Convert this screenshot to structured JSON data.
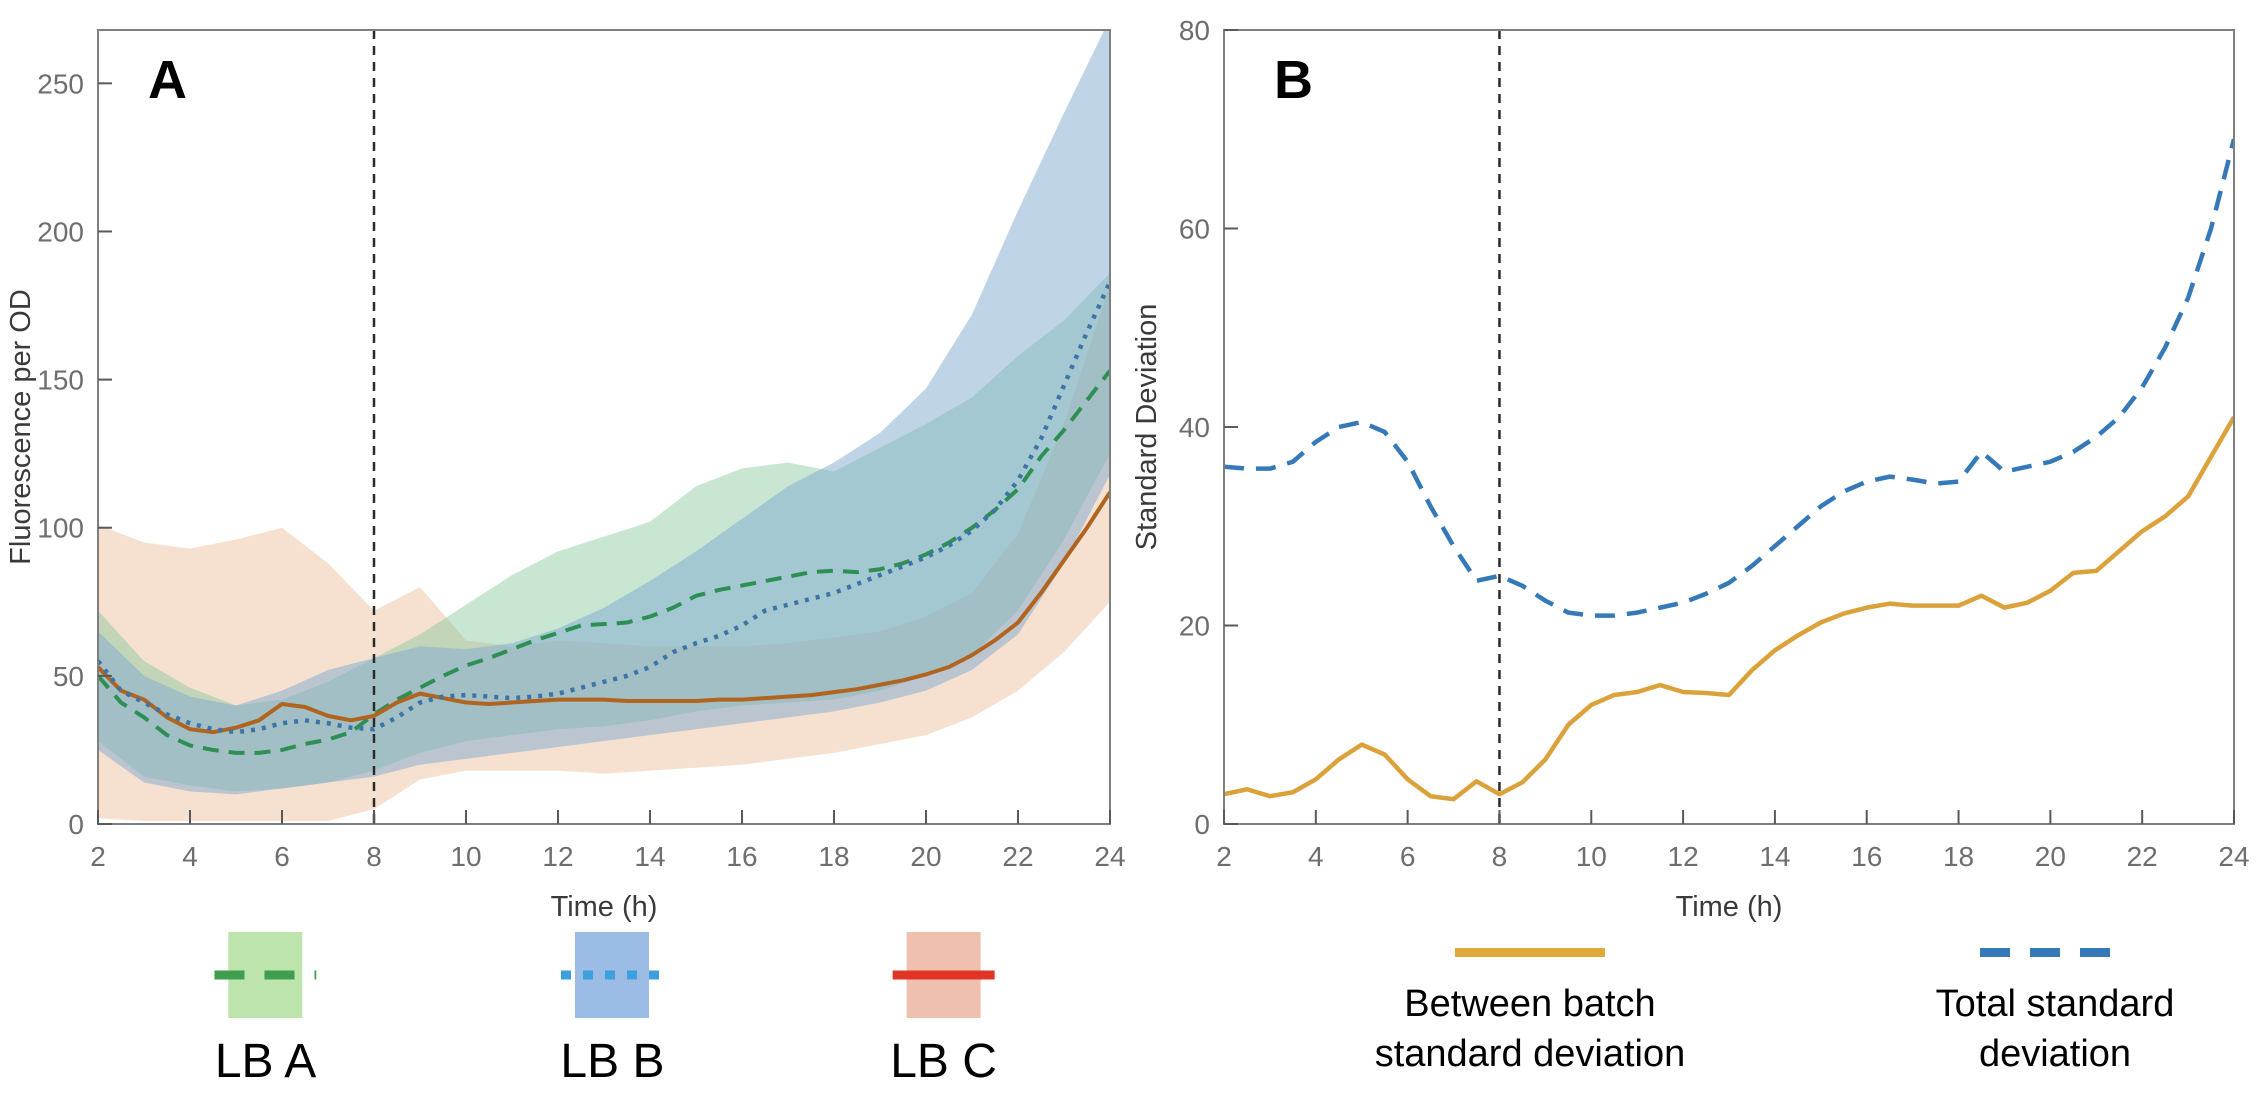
{
  "chart_data": [
    {
      "id": "A",
      "type": "line",
      "panel_label": "A",
      "xlabel": "Time (h)",
      "ylabel": "Fluorescence per OD",
      "xlim": [
        2,
        24
      ],
      "ylim": [
        0,
        268
      ],
      "x_ticks": [
        2,
        4,
        6,
        8,
        10,
        12,
        14,
        16,
        18,
        20,
        22,
        24
      ],
      "y_ticks": [
        0,
        50,
        100,
        150,
        200,
        250
      ],
      "grid": false,
      "vline": {
        "x": 8,
        "color": "#2b2b2b",
        "dash": "9 7",
        "width": 2.5
      },
      "x_start": 2,
      "x_step": 0.5,
      "series": [
        {
          "name": "LB A",
          "color": "#2e8f55",
          "dash": "16 10",
          "width": 4,
          "values": [
            50,
            41,
            36,
            30,
            26.5,
            25,
            24,
            24,
            25,
            27,
            28.5,
            31,
            37,
            42,
            46,
            50,
            53.5,
            56,
            59,
            62,
            64.5,
            67,
            67.5,
            68,
            70,
            73,
            77,
            79,
            80.5,
            82,
            83.5,
            85,
            85.5,
            85,
            86,
            88,
            91,
            95,
            100,
            106,
            113,
            124,
            133,
            143,
            153
          ]
        },
        {
          "name": "LB C",
          "color": "#b0641f",
          "dash": "",
          "width": 4,
          "values": [
            53,
            45,
            42,
            36,
            32,
            31,
            32.5,
            35,
            40.5,
            39.5,
            36.5,
            35,
            36.5,
            41,
            44,
            42.5,
            41,
            40.5,
            41,
            41.5,
            42,
            42,
            42,
            41.5,
            41.5,
            41.5,
            41.5,
            42,
            42,
            42.5,
            43,
            43.5,
            44.5,
            45.5,
            47,
            48.5,
            50.5,
            53,
            57,
            62,
            68,
            78,
            89,
            100,
            112
          ]
        },
        {
          "name": "LB B",
          "color": "#3d74a6",
          "dash": "4 7",
          "width": 4.5,
          "values": [
            55,
            45,
            41,
            37,
            34,
            32,
            31,
            32,
            34,
            35,
            34,
            32.5,
            32,
            36,
            41,
            43,
            43.5,
            43,
            42.5,
            43,
            44,
            46,
            48,
            50,
            53,
            58,
            61,
            63.5,
            67,
            72,
            74,
            76,
            78,
            81,
            84,
            87,
            90,
            94,
            99,
            106,
            116,
            130,
            148,
            166,
            183
          ]
        }
      ],
      "bands": [
        {
          "name": "LB C band",
          "color": "#e9b88e",
          "opacity": 0.42,
          "x": [
            2,
            3,
            4,
            5,
            6,
            7,
            8,
            9,
            10,
            11,
            12,
            13,
            14,
            15,
            16,
            17,
            18,
            19,
            20,
            21,
            22,
            23,
            24
          ],
          "upper": [
            101,
            95,
            93,
            96,
            100,
            88,
            72,
            80,
            62,
            60,
            62,
            61,
            60,
            60,
            60,
            61,
            63,
            65,
            70,
            78,
            98,
            135,
            182
          ],
          "lower": [
            2,
            1,
            1,
            1,
            1,
            1,
            5,
            15,
            18,
            18,
            18,
            17,
            18,
            19,
            20,
            22,
            24,
            27,
            30,
            36,
            45,
            58,
            75
          ]
        },
        {
          "name": "LB A band",
          "color": "#86c79c",
          "opacity": 0.45,
          "x": [
            2,
            3,
            4,
            5,
            6,
            7,
            8,
            9,
            10,
            11,
            12,
            13,
            14,
            15,
            16,
            17,
            18,
            19,
            20,
            21,
            22,
            23,
            24
          ],
          "upper": [
            72,
            55,
            46,
            40,
            42,
            48,
            56,
            64,
            74,
            84,
            92,
            97,
            102,
            114,
            120,
            122,
            119,
            127,
            135,
            144,
            158,
            170,
            186
          ],
          "lower": [
            28,
            16,
            13,
            11,
            12,
            14,
            18,
            24,
            28,
            30,
            32,
            33,
            35,
            38,
            40,
            41,
            42,
            45,
            50,
            57,
            72,
            96,
            125
          ]
        },
        {
          "name": "LB B band",
          "color": "#7fa9cf",
          "opacity": 0.5,
          "x": [
            2,
            3,
            4,
            5,
            6,
            7,
            8,
            9,
            10,
            11,
            12,
            13,
            14,
            15,
            16,
            17,
            18,
            19,
            20,
            21,
            22,
            23,
            24
          ],
          "upper": [
            65,
            50,
            43,
            40,
            45,
            52,
            56,
            60,
            59,
            61,
            66,
            73,
            82,
            92,
            103,
            114,
            122,
            132,
            147,
            172,
            207,
            240,
            272
          ],
          "lower": [
            25,
            14,
            11,
            10,
            12,
            14,
            16,
            20,
            22,
            24,
            26,
            28,
            30,
            32,
            34,
            36,
            38,
            41,
            45,
            52,
            64,
            88,
            118
          ]
        }
      ],
      "legend": [
        {
          "label": "LB A",
          "band_color": "#bce4ac",
          "line_color": "#3f9e4d",
          "line_style": "dashed"
        },
        {
          "label": "LB B",
          "band_color": "#9bbce4",
          "line_color": "#3da0dc",
          "line_style": "dotted"
        },
        {
          "label": "LB C",
          "band_color": "#eec0ad",
          "line_color": "#e03426",
          "line_style": "solid"
        }
      ]
    },
    {
      "id": "B",
      "type": "line",
      "panel_label": "B",
      "xlabel": "Time (h)",
      "ylabel": "Standard Deviation",
      "xlim": [
        2,
        24
      ],
      "ylim": [
        0,
        80
      ],
      "x_ticks": [
        2,
        4,
        6,
        8,
        10,
        12,
        14,
        16,
        18,
        20,
        22,
        24
      ],
      "y_ticks": [
        0,
        20,
        40,
        60,
        80
      ],
      "grid": false,
      "vline": {
        "x": 8,
        "color": "#2b2b2b",
        "dash": "9 7",
        "width": 2.5
      },
      "x_start": 2,
      "x_step": 0.5,
      "series": [
        {
          "name": "Between batch standard deviation",
          "color": "#dba23c",
          "dash": "",
          "width": 4.5,
          "values": [
            3,
            3.5,
            2.8,
            3.2,
            4.5,
            6.5,
            8,
            7,
            4.5,
            2.8,
            2.5,
            4.3,
            3,
            4.2,
            6.5,
            10,
            12,
            13,
            13.3,
            14,
            13.3,
            13.2,
            13,
            15.5,
            17.5,
            19,
            20.3,
            21.2,
            21.8,
            22.2,
            22,
            22,
            22,
            23,
            21.8,
            22.3,
            23.5,
            25.3,
            25.5,
            27.5,
            29.5,
            31,
            33,
            37,
            41
          ]
        },
        {
          "name": "Total standard deviation",
          "color": "#3579b8",
          "dash": "20 12",
          "width": 4.5,
          "values": [
            36,
            35.8,
            35.8,
            36.5,
            38.5,
            40,
            40.5,
            39.5,
            36.5,
            32,
            28,
            24.5,
            25,
            24,
            22.5,
            21.3,
            21,
            21,
            21.3,
            21.8,
            22.3,
            23.2,
            24.3,
            26,
            28,
            30,
            32,
            33.5,
            34.5,
            35,
            34.7,
            34.3,
            34.5,
            37.5,
            35.5,
            36,
            36.5,
            37.5,
            39,
            41,
            44,
            48,
            53,
            60,
            69
          ]
        }
      ],
      "bands": [],
      "legend": [
        {
          "label": "Between batch standard deviation",
          "line_color": "#dfa93b",
          "line_style": "solid"
        },
        {
          "label": "Total standard deviation",
          "line_color": "#3579b8",
          "line_style": "dashed"
        }
      ]
    }
  ],
  "style": {
    "border_color": "#7f7f7f",
    "tick_color": "#595959",
    "tick_label_color": "#6e6e6e",
    "axis_title_color": "#3a3a3a",
    "panel_letter_color": "#000000"
  }
}
